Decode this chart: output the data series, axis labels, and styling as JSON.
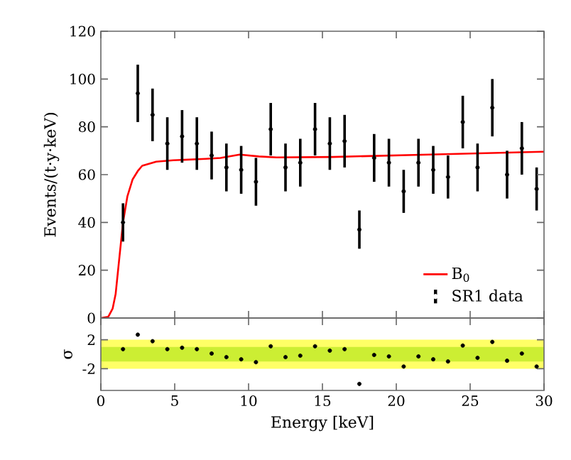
{
  "chart_data": [
    {
      "type": "scatter",
      "ylabel": "Events/(t·y·keV)",
      "xlim": [
        0,
        30
      ],
      "ylim": [
        0,
        120
      ],
      "xticks": [
        {
          "value": 0,
          "label": null
        },
        {
          "value": 5,
          "label": null
        },
        {
          "value": 10,
          "label": null
        },
        {
          "value": 15,
          "label": null
        },
        {
          "value": 20,
          "label": null
        },
        {
          "value": 25,
          "label": null
        },
        {
          "value": 30,
          "label": null
        }
      ],
      "yticks": [
        0,
        20,
        40,
        60,
        80,
        100,
        120
      ],
      "tick_labels": "y",
      "legend": "bottom right",
      "grid": false,
      "series": [
        {
          "name": "B$_{0}$",
          "type": "line",
          "color": "#ff0000",
          "line_style": "solid",
          "x": [
            0,
            0.5,
            0.8,
            1.0,
            1.2,
            1.5,
            1.8,
            2.15,
            2.5,
            2.8,
            3.75,
            4.9,
            7.1,
            8.1,
            9.4,
            10.7,
            11.9,
            15.7,
            22.2,
            30
          ],
          "values": [
            0,
            0.5,
            4,
            10,
            22,
            40,
            51,
            58,
            61.5,
            63.7,
            65.4,
            66,
            66.6,
            67,
            68.4,
            67.6,
            67.2,
            67.4,
            68.4,
            69.6
          ]
        },
        {
          "name": "SR1 data",
          "type": "scatter",
          "color": "#000000",
          "marker": "circle",
          "x": [
            1.5,
            2.5,
            3.5,
            4.5,
            5.5,
            6.5,
            7.5,
            8.5,
            9.5,
            10.5,
            11.5,
            12.5,
            13.5,
            14.5,
            15.5,
            16.5,
            17.5,
            18.5,
            19.5,
            20.5,
            21.5,
            22.5,
            23.5,
            24.5,
            25.5,
            26.5,
            27.5,
            28.5,
            29.5
          ],
          "values": [
            40,
            94,
            85,
            73,
            76,
            73,
            68,
            63,
            62,
            57,
            79,
            63,
            65,
            79,
            73,
            74,
            37,
            67,
            65,
            53,
            65,
            62,
            59,
            82,
            63,
            88,
            60,
            71,
            54
          ],
          "errors": [
            8,
            12,
            11,
            11,
            11,
            11,
            10,
            10,
            10,
            10,
            11,
            10,
            10,
            11,
            11,
            11,
            8,
            10,
            10,
            9,
            10,
            10,
            9,
            11,
            10,
            12,
            10,
            11,
            9
          ]
        }
      ]
    },
    {
      "type": "scatter",
      "xlabel": "Energy [keV]",
      "ylabel": "σ",
      "xlim": [
        0,
        30
      ],
      "ylim": [
        -5,
        5
      ],
      "xticks": [
        0,
        5,
        10,
        15,
        20,
        25,
        30
      ],
      "yticks": [
        -2,
        2
      ],
      "grid": false,
      "bands": [
        {
          "axis": "y",
          "from": -2,
          "to": 2,
          "color": "#ffff66"
        },
        {
          "axis": "y",
          "from": -1,
          "to": 1,
          "color": "#ccee33"
        }
      ],
      "series": [
        {
          "color": "#000000",
          "marker": "circle",
          "x": [
            1.5,
            2.5,
            3.5,
            4.5,
            5.5,
            6.5,
            7.5,
            8.5,
            9.5,
            10.5,
            11.5,
            12.5,
            13.5,
            14.5,
            15.5,
            16.5,
            17.5,
            18.5,
            19.5,
            20.5,
            21.5,
            22.5,
            23.5,
            24.5,
            25.5,
            26.5,
            27.5,
            28.5,
            29.5
          ],
          "values": [
            0.7,
            2.7,
            1.8,
            0.7,
            0.9,
            0.7,
            0.1,
            -0.4,
            -0.7,
            -1.1,
            1.1,
            -0.4,
            -0.2,
            1.1,
            0.5,
            0.7,
            -4.1,
            -0.1,
            -0.3,
            -1.7,
            -0.3,
            -0.7,
            -1.0,
            1.2,
            -0.5,
            1.7,
            -0.9,
            0.1,
            -1.7
          ]
        }
      ]
    }
  ]
}
